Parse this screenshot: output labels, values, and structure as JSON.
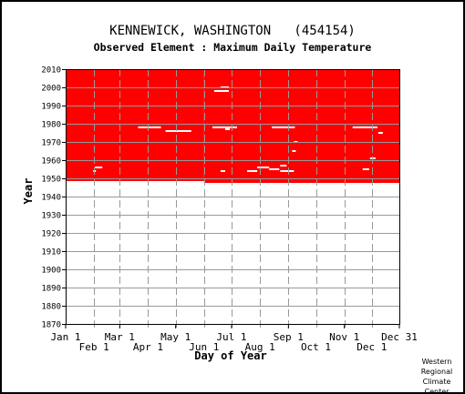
{
  "header": {
    "station": "KENNEWICK, WASHINGTON   (454154)",
    "subtitle": "Observed Element : Maximum Daily Temperature"
  },
  "credit": {
    "lines": [
      "Western",
      "Regional",
      "Climate",
      "Center"
    ]
  },
  "colors": {
    "data_fill": "#ff0000",
    "missing": "#ffffff",
    "grid": "#999999",
    "axis": "#000000"
  },
  "chart_data": {
    "type": "heatmap",
    "title": "Observed Element : Maximum Daily Temperature",
    "xlabel": "Day of Year",
    "ylabel": "Year",
    "xlim": [
      1,
      365
    ],
    "ylim": [
      1870,
      2010
    ],
    "y_ticks": [
      1870,
      1880,
      1890,
      1900,
      1910,
      1920,
      1930,
      1940,
      1950,
      1960,
      1970,
      1980,
      1990,
      2000,
      2010
    ],
    "x_ticks_upper": [
      {
        "label": "Jan 1",
        "day": 1
      },
      {
        "label": "Mar 1",
        "day": 60
      },
      {
        "label": "May 1",
        "day": 121
      },
      {
        "label": "Jul 1",
        "day": 182
      },
      {
        "label": "Sep 1",
        "day": 244
      },
      {
        "label": "Nov 1",
        "day": 305
      },
      {
        "label": "Dec 31",
        "day": 365
      }
    ],
    "x_ticks_lower": [
      {
        "label": "Feb 1",
        "day": 32
      },
      {
        "label": "Apr 1",
        "day": 91
      },
      {
        "label": "Jun 1",
        "day": 152
      },
      {
        "label": "Aug 1",
        "day": 213
      },
      {
        "label": "Oct 1",
        "day": 274
      },
      {
        "label": "Dec 1",
        "day": 335
      }
    ],
    "grid": true,
    "coverage": [
      {
        "day_start": 1,
        "day_end": 151,
        "year_start": 1948.5,
        "year_end": 2010
      },
      {
        "day_start": 152,
        "day_end": 365,
        "year_start": 1947.5,
        "year_end": 2010
      }
    ],
    "missing_periods": [
      {
        "year": 1978,
        "day_start": 80,
        "day_end": 104
      },
      {
        "year": 1976,
        "day_start": 110,
        "day_end": 137
      },
      {
        "year": 1978,
        "day_start": 161,
        "day_end": 187
      },
      {
        "year": 1977,
        "day_start": 175,
        "day_end": 179
      },
      {
        "year": 1978,
        "day_start": 226,
        "day_end": 250
      },
      {
        "year": 1978,
        "day_start": 314,
        "day_end": 340
      },
      {
        "year": 1956,
        "day_start": 33,
        "day_end": 40
      },
      {
        "year": 1998,
        "day_start": 163,
        "day_end": 178
      },
      {
        "year": 2000,
        "day_start": 170,
        "day_end": 178
      },
      {
        "year": 1957,
        "day_start": 235,
        "day_end": 241
      },
      {
        "year": 1956,
        "day_start": 210,
        "day_end": 222
      },
      {
        "year": 1955,
        "day_start": 223,
        "day_end": 233
      },
      {
        "year": 1954,
        "day_start": 235,
        "day_end": 249
      },
      {
        "year": 1954,
        "day_start": 199,
        "day_end": 209
      },
      {
        "year": 1955,
        "day_start": 325,
        "day_end": 331
      },
      {
        "year": 1961,
        "day_start": 333,
        "day_end": 338
      },
      {
        "year": 1970,
        "day_start": 250,
        "day_end": 253
      },
      {
        "year": 1965,
        "day_start": 248,
        "day_end": 251
      },
      {
        "year": 1954,
        "day_start": 31,
        "day_end": 33
      },
      {
        "year": 1975,
        "day_start": 342,
        "day_end": 346
      },
      {
        "year": 1954,
        "day_start": 170,
        "day_end": 174
      }
    ],
    "dividers_days": [
      32,
      60,
      91,
      121,
      152,
      182,
      213,
      244,
      274,
      305,
      335
    ]
  }
}
